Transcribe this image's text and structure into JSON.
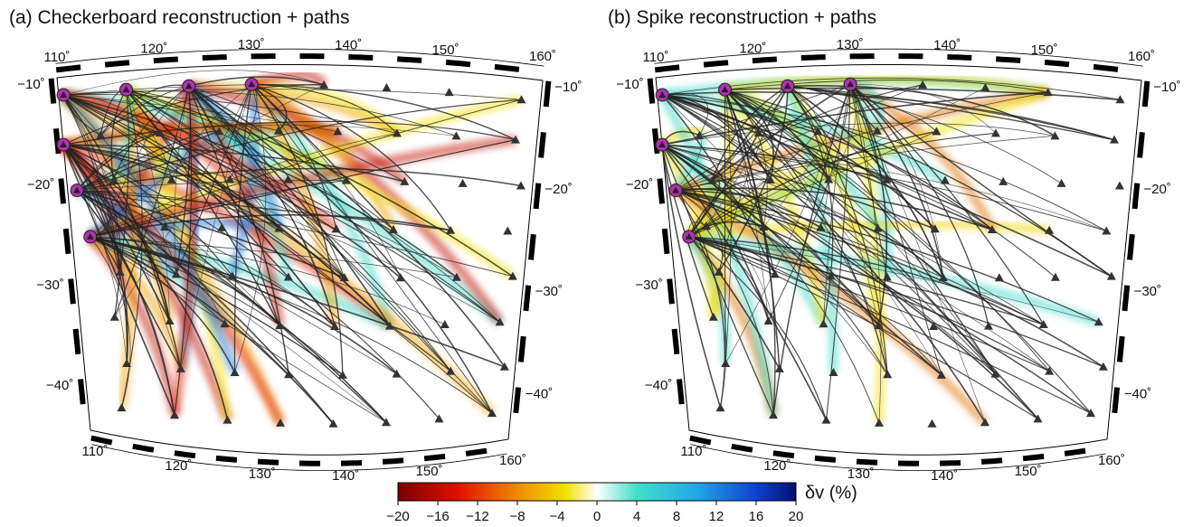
{
  "panels": [
    {
      "title": "(a)  Checkerboard reconstruction + paths",
      "top_labels": [
        "110˚",
        "120˚",
        "130˚",
        "140˚",
        "150˚",
        "160˚"
      ],
      "bottom_labels": [
        "110˚",
        "120˚",
        "130˚",
        "140˚",
        "150˚",
        "160˚"
      ],
      "left_labels": [
        "−10˚",
        "−20˚",
        "−30˚",
        "−40˚"
      ],
      "right_labels": [
        "−10˚",
        "−20˚",
        "−30˚",
        "−40˚"
      ]
    },
    {
      "title": "(b)  Spike reconstruction + paths",
      "top_labels": [
        "110˚",
        "120˚",
        "130˚",
        "140˚",
        "150˚",
        "160˚"
      ],
      "bottom_labels": [
        "110˚",
        "120˚",
        "130˚",
        "140˚",
        "150˚",
        "160˚"
      ],
      "left_labels": [
        "−10˚",
        "−20˚",
        "−30˚",
        "−40˚"
      ],
      "right_labels": [
        "−10˚",
        "−20˚",
        "−30˚",
        "−40˚"
      ]
    }
  ],
  "colorbar": {
    "label": "δv (%)",
    "range": [
      -20,
      20
    ],
    "ticks": [
      {
        "value": -20,
        "label": "−20"
      },
      {
        "value": -16,
        "label": "−16"
      },
      {
        "value": -12,
        "label": "−12"
      },
      {
        "value": -8,
        "label": "−8"
      },
      {
        "value": -4,
        "label": "−4"
      },
      0,
      4,
      8,
      12,
      16,
      20
    ]
  }
}
